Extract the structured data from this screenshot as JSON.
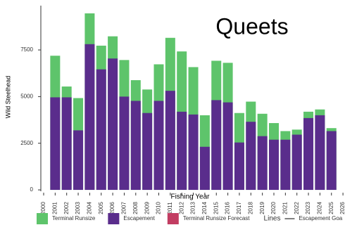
{
  "chart_data": {
    "type": "bar",
    "title": "Queets",
    "x_label": "Fishing Year",
    "y_label": "Wild Steelhead",
    "categories": [
      "2000",
      "2001",
      "2002",
      "2003",
      "2004",
      "2005",
      "2006",
      "2007",
      "2008",
      "2009",
      "2010",
      "2011",
      "2012",
      "2013",
      "2014",
      "2015",
      "2016",
      "2017",
      "2018",
      "2019",
      "2020",
      "2021",
      "2022",
      "2023",
      "2024",
      "2025",
      "2026"
    ],
    "series": [
      {
        "name": "Terminal Runsize",
        "color": "#5ec46b",
        "values": [
          null,
          7190,
          5540,
          4920,
          9460,
          7730,
          8230,
          6960,
          5880,
          5380,
          6730,
          8150,
          7420,
          6580,
          4000,
          6920,
          6810,
          4120,
          4730,
          4080,
          3580,
          3150,
          3230,
          4190,
          4310,
          3310,
          null
        ]
      },
      {
        "name": "Escapement",
        "color": "#5a2d8c",
        "values": [
          null,
          4960,
          4960,
          3190,
          7810,
          6460,
          7040,
          5000,
          4770,
          4120,
          4770,
          5310,
          4190,
          4040,
          2310,
          4810,
          4690,
          2540,
          3650,
          2880,
          2690,
          2690,
          2960,
          3850,
          4000,
          3150,
          null
        ]
      },
      {
        "name": "Terminal Runsize Forecast",
        "color": "#c23d62",
        "values": [
          null,
          null,
          null,
          null,
          null,
          null,
          null,
          null,
          null,
          null,
          null,
          null,
          null,
          null,
          null,
          null,
          null,
          null,
          null,
          null,
          null,
          null,
          null,
          null,
          null,
          null,
          null
        ]
      }
    ],
    "lines_legend": {
      "title": "Lines",
      "name": "Escapement Goa"
    },
    "ylim": [
      -300,
      9800
    ],
    "yticks": [
      0,
      2500,
      5000,
      7500
    ]
  }
}
